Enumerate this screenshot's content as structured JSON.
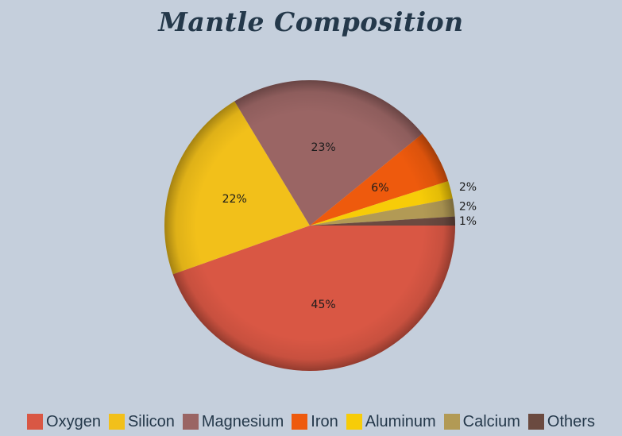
{
  "chart_data": {
    "type": "pie",
    "title": "Mantle Composition",
    "slices": [
      {
        "name": "Oxygen",
        "value": 45,
        "label": "45%",
        "color": "#d95744"
      },
      {
        "name": "Silicon",
        "value": 22,
        "label": "22%",
        "color": "#f2c01a"
      },
      {
        "name": "Magnesium",
        "value": 23,
        "label": "23%",
        "color": "#9a6564"
      },
      {
        "name": "Iron",
        "value": 6,
        "label": "6%",
        "color": "#ee5a0d"
      },
      {
        "name": "Aluminum",
        "value": 2,
        "label": "2%",
        "color": "#f7cc08"
      },
      {
        "name": "Calcium",
        "value": 2,
        "label": "2%",
        "color": "#b29a55"
      },
      {
        "name": "Others",
        "value": 1,
        "label": "1%",
        "color": "#6b4a40"
      }
    ],
    "legend_position": "bottom"
  }
}
